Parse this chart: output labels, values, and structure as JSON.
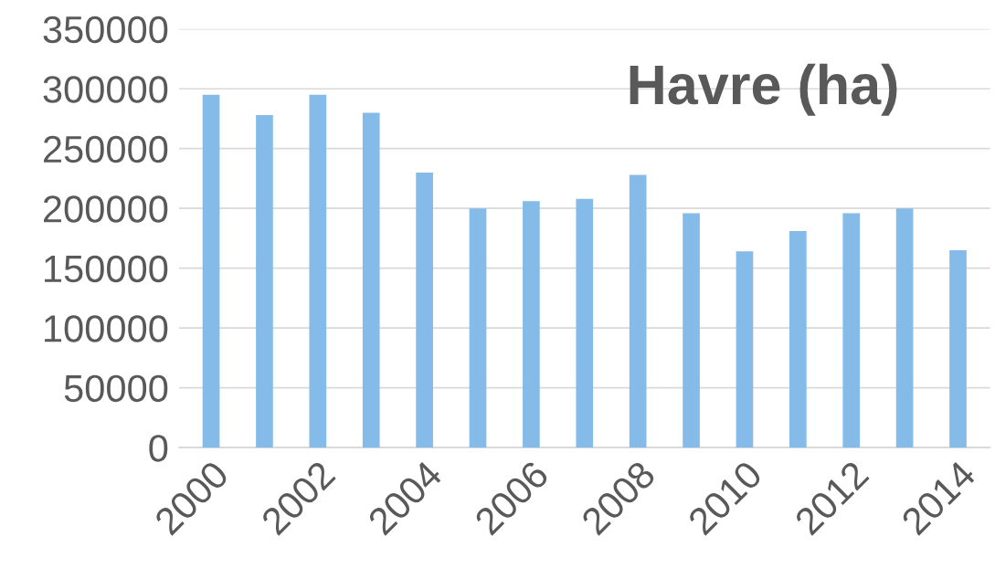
{
  "chart_data": {
    "type": "bar",
    "title": "Havre (ha)",
    "categories": [
      "2000",
      null,
      "2002",
      null,
      "2004",
      null,
      "2006",
      null,
      "2008",
      null,
      "2010",
      null,
      "2012",
      null,
      "2014"
    ],
    "values": [
      295000,
      278000,
      295000,
      280000,
      230000,
      200000,
      206000,
      208000,
      228000,
      196000,
      164000,
      181000,
      196000,
      200000,
      165000
    ],
    "color": "#85bbe8",
    "ylim": [
      0,
      350000
    ],
    "yticks": [
      0,
      50000,
      100000,
      150000,
      200000,
      250000,
      300000,
      350000
    ],
    "grid": "y"
  }
}
